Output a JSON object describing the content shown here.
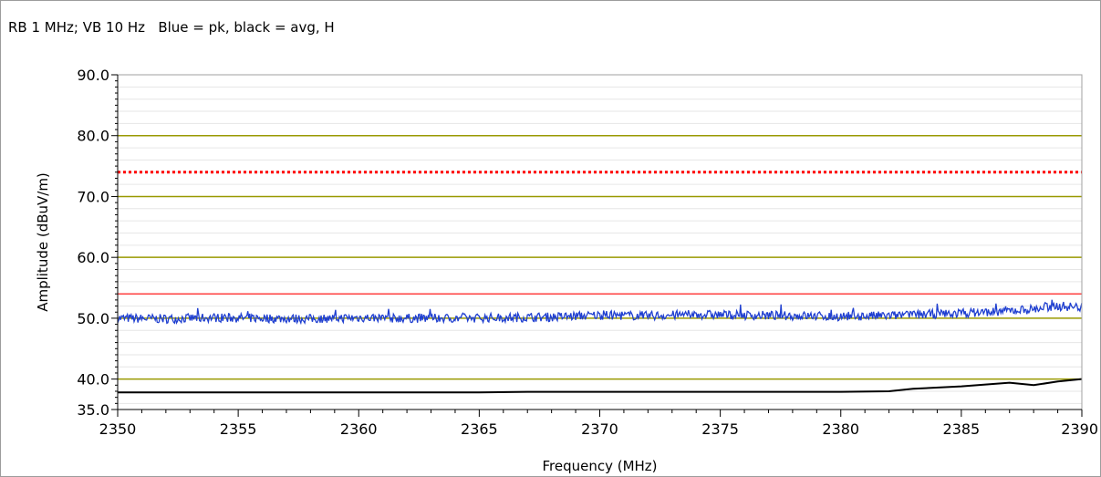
{
  "caption": "RB 1 MHz; VB 10 Hz   Blue = pk, black = avg, H",
  "chart_data": {
    "type": "line",
    "title": "",
    "xlabel": "Frequency (MHz)",
    "ylabel": "Amplitude (dBuV/m)",
    "xlim": [
      2350,
      2390
    ],
    "ylim": [
      35,
      90
    ],
    "x_ticks": [
      2350,
      2355,
      2360,
      2365,
      2370,
      2375,
      2380,
      2385,
      2390
    ],
    "x_tick_labels": [
      "2350",
      "2355",
      "2360",
      "2365",
      "2370",
      "2375",
      "2380",
      "2385",
      "2390"
    ],
    "y_ticks": [
      35,
      40,
      50,
      60,
      70,
      80,
      90
    ],
    "y_tick_labels": [
      "35.0",
      "40.0",
      "50.0",
      "60.0",
      "70.0",
      "80.0",
      "90.0"
    ],
    "major_gridlines_y": [
      40,
      50,
      60,
      70,
      80
    ],
    "gridline_color": "#999900",
    "limit_lines": [
      {
        "y": 74,
        "style": "dotted",
        "color": "#ff0000"
      },
      {
        "y": 54,
        "style": "solid",
        "color": "#ff4040"
      }
    ],
    "series": [
      {
        "color": "#1f3fd0",
        "x": [
          2350,
          2352,
          2354,
          2356,
          2358,
          2360,
          2362,
          2364,
          2366,
          2368,
          2370,
          2372,
          2374,
          2376,
          2378,
          2380,
          2382,
          2384,
          2386,
          2388,
          2389,
          2390
        ],
        "y": [
          50.0,
          49.9,
          50.1,
          50.0,
          49.9,
          50.1,
          50.0,
          50.0,
          50.1,
          50.2,
          50.5,
          50.4,
          50.6,
          50.5,
          50.4,
          50.3,
          50.4,
          50.7,
          51.0,
          51.5,
          52.0,
          51.8
        ]
      },
      {
        "color": "#000000",
        "x": [
          2350,
          2355,
          2360,
          2365,
          2367,
          2370,
          2375,
          2380,
          2382,
          2383,
          2385,
          2387,
          2388,
          2389,
          2390
        ],
        "y": [
          37.8,
          37.8,
          37.8,
          37.8,
          37.9,
          37.9,
          37.9,
          37.9,
          38.0,
          38.4,
          38.8,
          39.4,
          39.0,
          39.6,
          40.0
        ]
      }
    ]
  }
}
